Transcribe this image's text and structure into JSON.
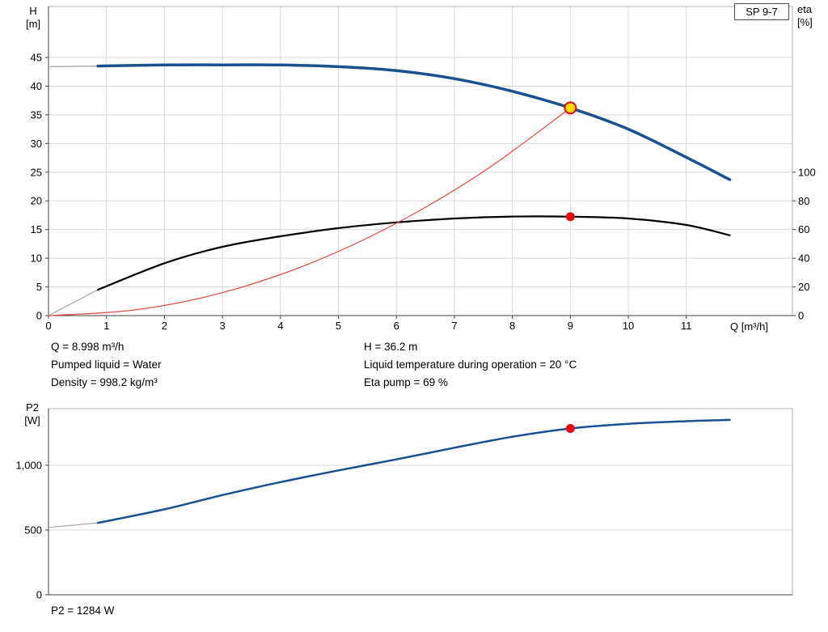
{
  "pump_model_badge": "SP 9-7",
  "colors": {
    "curve_blue": "#1c4f8f",
    "curve_black": "#000000",
    "curve_red": "#dd4b3e",
    "marker_red": "#e30613",
    "marker_yellow": "#ffd900",
    "grid": "#d9d9d9",
    "frame": "#b3b3b3",
    "axis": "#404040",
    "thin_intro": "#9aa5ad"
  },
  "axis_titles": {
    "top_left_1": "H",
    "top_left_2": "[m]",
    "top_right_1": "eta",
    "top_right_2": "[%]",
    "x": "Q [m³/h]",
    "bottom_left_1": "P2",
    "bottom_left_2": "[W]"
  },
  "annotations": {
    "col1": [
      "Q = 8.998 m³/h",
      "Pumped liquid = Water",
      "Density = 998.2 kg/m³"
    ],
    "col2": [
      "H = 36.2 m",
      "Liquid temperature during operation = 20 °C",
      "Eta pump = 69 %"
    ],
    "p2_line": "P2 = 1284 W"
  },
  "chart_data": [
    {
      "type": "line",
      "title": "SP 9-7 pump performance curve (H and eta vs Q)",
      "x_axis": {
        "label": "Q [m³/h]",
        "ticks": [
          0,
          1,
          2,
          3,
          4,
          5,
          6,
          7,
          8,
          9,
          10,
          11
        ],
        "min": 0,
        "max": 12.83
      },
      "y_axis_left": {
        "label": "H [m]",
        "ticks": [
          0,
          5,
          10,
          15,
          20,
          25,
          30,
          35,
          40,
          45
        ],
        "min": 0,
        "max": 53.89
      },
      "y_axis_right": {
        "label": "eta [%]",
        "ticks": [
          0,
          20,
          40,
          60,
          80,
          100
        ],
        "min": 0,
        "max": 215.6
      },
      "grid": true,
      "series": [
        {
          "name": "head-curve",
          "axis": "left",
          "color_key": "curve_blue",
          "width": 3.5,
          "x": [
            0.85,
            2,
            3,
            4,
            5,
            6,
            7,
            8,
            9,
            10,
            11,
            11.75
          ],
          "y": [
            43.5,
            43.7,
            43.7,
            43.7,
            43.4,
            42.7,
            41.3,
            39.1,
            36.2,
            32.5,
            27.6,
            23.7
          ],
          "intro": {
            "x": [
              0,
              0.85
            ],
            "y": [
              43.4,
              43.5
            ]
          }
        },
        {
          "name": "efficiency-curve",
          "axis": "right",
          "color_key": "curve_black",
          "width": 2.2,
          "x": [
            0.85,
            2,
            3,
            4,
            5,
            6,
            7,
            8,
            9,
            10,
            11,
            11.75
          ],
          "y": [
            18,
            36.5,
            48,
            55.3,
            61,
            65,
            67.7,
            69.1,
            69,
            67.7,
            63.2,
            56
          ],
          "intro": {
            "x": [
              0,
              0.85
            ],
            "y": [
              0,
              18
            ]
          }
        },
        {
          "name": "system-curve",
          "axis": "left",
          "color_key": "curve_red",
          "width": 1.2,
          "x": [
            0,
            1.5,
            3,
            4.5,
            6,
            7.5,
            9
          ],
          "y": [
            0,
            1.0,
            4.0,
            9.05,
            16.1,
            25.1,
            36.2
          ]
        }
      ],
      "markers": [
        {
          "name": "duty-point",
          "x": 9,
          "y": 36.2,
          "axis": "left",
          "r": 7,
          "fill_key": "marker_yellow",
          "stroke_key": "marker_red"
        },
        {
          "name": "eta-point",
          "x": 9,
          "y": 69,
          "axis": "right",
          "r": 5.5,
          "fill_key": "marker_red"
        }
      ]
    },
    {
      "type": "line",
      "title": "P2 power curve (P2 vs Q)",
      "x_axis": {
        "label": "",
        "ticks": [],
        "min": 0,
        "max": 12.83
      },
      "y_axis_left": {
        "label": "P2 [W]",
        "ticks": [
          0,
          500,
          1000
        ],
        "tick_labels": [
          "0",
          "500",
          "1,000"
        ],
        "min": 0,
        "max": 1437
      },
      "grid": true,
      "series": [
        {
          "name": "p2-curve",
          "axis": "left",
          "color_key": "curve_blue",
          "width": 2.5,
          "x": [
            0.85,
            2,
            3,
            4,
            5,
            6,
            7,
            8,
            9,
            10,
            11,
            11.75
          ],
          "y": [
            555,
            660,
            770,
            870,
            960,
            1045,
            1135,
            1220,
            1284,
            1320,
            1340,
            1350
          ],
          "intro": {
            "x": [
              0,
              0.85
            ],
            "y": [
              520,
              555
            ]
          }
        }
      ],
      "markers": [
        {
          "name": "p2-point",
          "x": 9,
          "y": 1284,
          "axis": "left",
          "r": 5.5,
          "fill_key": "marker_red"
        }
      ]
    }
  ]
}
